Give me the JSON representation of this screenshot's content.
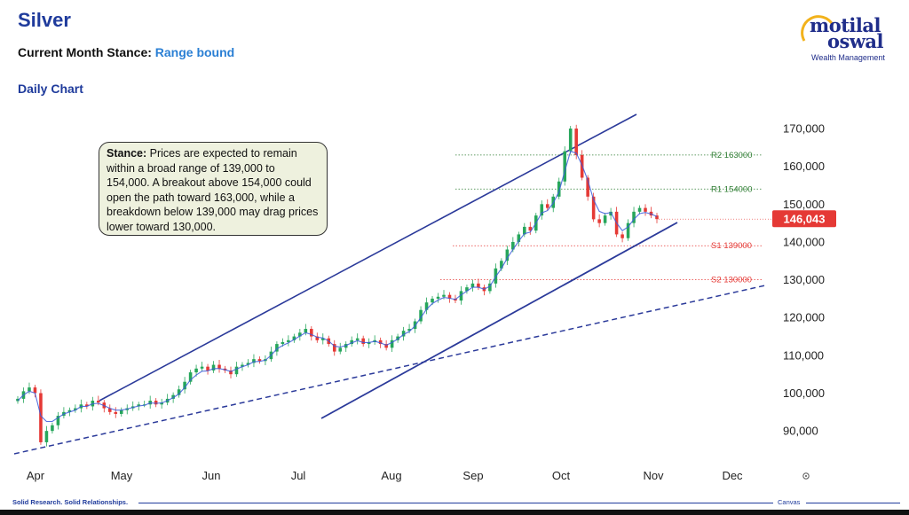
{
  "header": {
    "title": "Silver",
    "stance_label": "Current Month Stance:",
    "stance_value": "Range bound",
    "subtitle": "Daily Chart"
  },
  "logo": {
    "line1": "motilal",
    "line2": "oswal",
    "tagline": "Wealth Management"
  },
  "footer": {
    "left": "Solid Research. Solid Relationships.",
    "right": "Canvas"
  },
  "annotation": {
    "label": "Stance:",
    "text": "Prices are expected to remain within a broad range of 139,000 to 154,000. A breakout above 154,000 could open the path toward 163,000, while a breakdown below 139,000 may drag prices lower toward 130,000."
  },
  "chart_data": {
    "type": "line",
    "x_labels": [
      "Apr",
      "May",
      "Jun",
      "Jul",
      "Aug",
      "Sep",
      "Oct",
      "Nov",
      "Dec"
    ],
    "y_ticks": [
      "170,000",
      "160,000",
      "150,000",
      "140,000",
      "130,000",
      "120,000",
      "110,000",
      "100,000",
      "90,000"
    ],
    "ylim": [
      83000,
      174000
    ],
    "last_price": "146,043",
    "levels": [
      {
        "name": "R2",
        "label": "R2 163000",
        "value": 163000,
        "color": "#2e7d32"
      },
      {
        "name": "R1",
        "label": "R1 154000",
        "value": 154000,
        "color": "#2e7d32"
      },
      {
        "name": "S1",
        "label": "S1 139000",
        "value": 139000,
        "color": "#e53935"
      },
      {
        "name": "S2",
        "label": "S2 130000",
        "value": 130000,
        "color": "#e53935"
      }
    ],
    "close_series": [
      98500,
      100500,
      101500,
      100000,
      87000,
      90000,
      91500,
      94000,
      95000,
      95500,
      96000,
      97000,
      96500,
      98000,
      97500,
      96000,
      95000,
      94500,
      95500,
      96000,
      96500,
      97000,
      97000,
      98000,
      97000,
      97500,
      98500,
      99500,
      101000,
      103000,
      105500,
      106500,
      107000,
      106000,
      107500,
      106500,
      106000,
      105000,
      107000,
      107500,
      108000,
      109000,
      108500,
      109000,
      111000,
      113000,
      113500,
      114000,
      115000,
      116000,
      117000,
      115000,
      114000,
      114500,
      113000,
      111000,
      112000,
      113000,
      114000,
      114500,
      113000,
      113500,
      114000,
      113000,
      112000,
      114000,
      115000,
      116500,
      117000,
      119000,
      122000,
      124000,
      125000,
      125500,
      126000,
      125000,
      124500,
      127000,
      128000,
      129000,
      128000,
      127000,
      129000,
      133000,
      135000,
      138000,
      140000,
      142000,
      144000,
      143000,
      147000,
      150000,
      149000,
      152000,
      156000,
      164000,
      170000,
      163000,
      157000,
      152000,
      146000,
      145000,
      147000,
      148000,
      142000,
      141000,
      145000,
      148000,
      149000,
      148000,
      147000,
      146043
    ],
    "ma_series": [
      98000,
      99500,
      100500,
      100000,
      94000,
      92500,
      92500,
      93500,
      94500,
      95000,
      95500,
      96500,
      96500,
      97200,
      97300,
      96700,
      96000,
      95500,
      95500,
      95800,
      96200,
      96600,
      96800,
      97400,
      97300,
      97400,
      98000,
      98800,
      99800,
      101500,
      103500,
      104800,
      105800,
      105900,
      106500,
      106500,
      106200,
      105700,
      106400,
      107000,
      107500,
      108300,
      108400,
      108700,
      110000,
      111700,
      112600,
      113300,
      114200,
      115100,
      116000,
      115500,
      114800,
      114600,
      113800,
      112400,
      112200,
      112600,
      113300,
      113900,
      113400,
      113400,
      113700,
      113300,
      112700,
      113400,
      114300,
      115500,
      116300,
      117800,
      120000,
      122200,
      123700,
      124600,
      125300,
      125100,
      124800,
      126000,
      127000,
      128000,
      128000,
      127500,
      128300,
      130800,
      133000,
      135700,
      138000,
      140200,
      142200,
      142600,
      145000,
      147700,
      148300,
      150300,
      153300,
      158700,
      164000,
      163500,
      160300,
      156300,
      151200,
      148100,
      147500,
      147800,
      145000,
      143000,
      144000,
      146000,
      147500,
      147800,
      147400,
      146700
    ]
  }
}
